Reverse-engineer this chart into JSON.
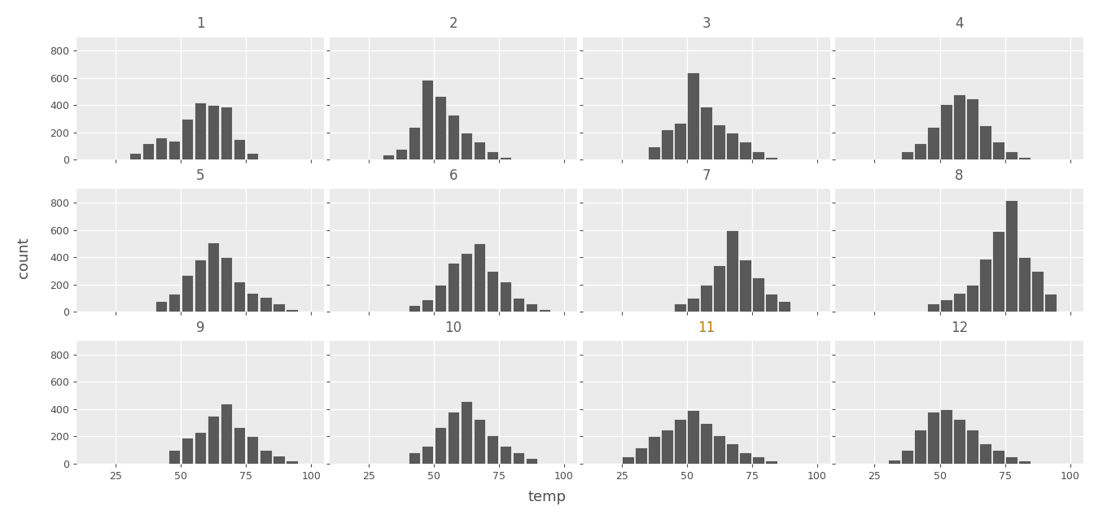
{
  "months": [
    1,
    2,
    3,
    4,
    5,
    6,
    7,
    8,
    9,
    10,
    11,
    12
  ],
  "ncols": 4,
  "nrows": 3,
  "xlim": [
    10,
    105
  ],
  "ylim": [
    0,
    900
  ],
  "yticks": [
    0,
    200,
    400,
    600,
    800
  ],
  "xticks": [
    25,
    50,
    75,
    100
  ],
  "bin_edges": [
    10,
    15,
    20,
    25,
    30,
    35,
    40,
    45,
    50,
    55,
    60,
    65,
    70,
    75,
    80,
    85,
    90,
    95,
    100,
    105
  ],
  "bar_color": "#595959",
  "bar_edge_color": "white",
  "panel_bg": "#EBEBEB",
  "strip_bg": "#D3D3D3",
  "outer_bg": "white",
  "grid_color": "white",
  "axis_text_color": "#4D4D4D",
  "strip_text_color": "#5B5B5B",
  "xlabel": "temp",
  "ylabel": "count",
  "hist_counts": {
    "1": [
      0,
      0,
      0,
      0,
      50,
      120,
      160,
      140,
      300,
      420,
      400,
      390,
      150,
      50,
      0,
      0,
      0,
      0,
      0
    ],
    "2": [
      0,
      0,
      0,
      0,
      40,
      80,
      240,
      590,
      470,
      330,
      200,
      130,
      60,
      20,
      0,
      0,
      0,
      0,
      0
    ],
    "3": [
      0,
      0,
      0,
      0,
      0,
      100,
      220,
      270,
      640,
      390,
      260,
      200,
      130,
      60,
      20,
      0,
      0,
      0,
      0
    ],
    "4": [
      0,
      0,
      0,
      0,
      0,
      60,
      120,
      240,
      410,
      480,
      450,
      250,
      130,
      60,
      20,
      0,
      0,
      0,
      0
    ],
    "5": [
      0,
      0,
      0,
      0,
      0,
      0,
      80,
      130,
      270,
      380,
      510,
      400,
      220,
      140,
      110,
      60,
      20,
      0,
      0
    ],
    "6": [
      0,
      0,
      0,
      0,
      0,
      0,
      50,
      90,
      200,
      360,
      430,
      500,
      300,
      220,
      100,
      60,
      20,
      0,
      0
    ],
    "7": [
      0,
      0,
      0,
      0,
      0,
      0,
      0,
      60,
      100,
      200,
      340,
      600,
      380,
      250,
      130,
      80,
      0,
      0,
      0
    ],
    "8": [
      0,
      0,
      0,
      0,
      0,
      0,
      0,
      60,
      90,
      140,
      200,
      390,
      590,
      820,
      400,
      300,
      130,
      0,
      0
    ],
    "9": [
      0,
      0,
      0,
      0,
      0,
      0,
      0,
      100,
      190,
      230,
      350,
      440,
      270,
      200,
      100,
      60,
      20,
      0,
      0
    ],
    "10": [
      0,
      0,
      0,
      0,
      0,
      0,
      80,
      130,
      270,
      380,
      460,
      330,
      210,
      130,
      80,
      40,
      0,
      0,
      0
    ],
    "11": [
      0,
      0,
      0,
      50,
      120,
      200,
      250,
      330,
      390,
      300,
      210,
      150,
      80,
      50,
      20,
      0,
      0,
      0,
      0
    ],
    "12": [
      0,
      0,
      0,
      0,
      30,
      100,
      250,
      380,
      400,
      330,
      250,
      150,
      100,
      50,
      20,
      0,
      0,
      0,
      0
    ]
  }
}
